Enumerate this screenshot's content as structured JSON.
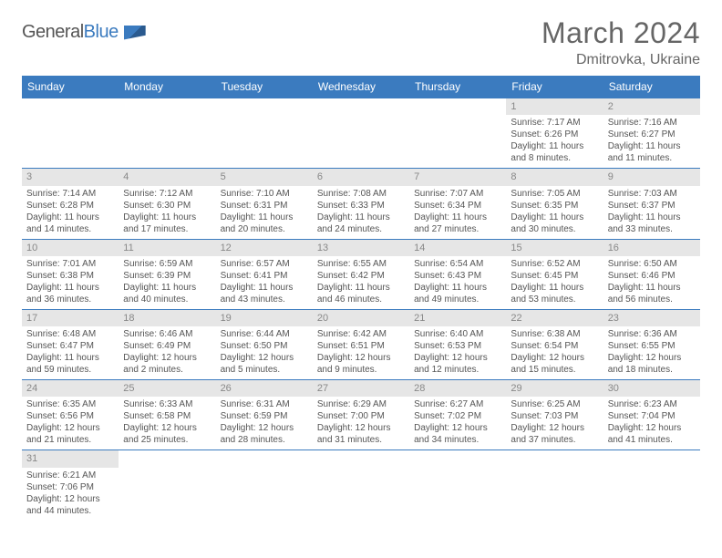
{
  "logo": {
    "text1": "General",
    "text2": "Blue"
  },
  "title": "March 2024",
  "location": "Dmitrovka, Ukraine",
  "colors": {
    "header_bg": "#3b7bbf",
    "header_fg": "#ffffff",
    "daynum_bg": "#e6e6e6",
    "daynum_fg": "#888888",
    "body_text": "#555555",
    "border": "#3b7bbf",
    "title_fg": "#666666"
  },
  "weekdays": [
    "Sunday",
    "Monday",
    "Tuesday",
    "Wednesday",
    "Thursday",
    "Friday",
    "Saturday"
  ],
  "weeks": [
    [
      null,
      null,
      null,
      null,
      null,
      {
        "n": "1",
        "sr": "Sunrise: 7:17 AM",
        "ss": "Sunset: 6:26 PM",
        "dl1": "Daylight: 11 hours",
        "dl2": "and 8 minutes."
      },
      {
        "n": "2",
        "sr": "Sunrise: 7:16 AM",
        "ss": "Sunset: 6:27 PM",
        "dl1": "Daylight: 11 hours",
        "dl2": "and 11 minutes."
      }
    ],
    [
      {
        "n": "3",
        "sr": "Sunrise: 7:14 AM",
        "ss": "Sunset: 6:28 PM",
        "dl1": "Daylight: 11 hours",
        "dl2": "and 14 minutes."
      },
      {
        "n": "4",
        "sr": "Sunrise: 7:12 AM",
        "ss": "Sunset: 6:30 PM",
        "dl1": "Daylight: 11 hours",
        "dl2": "and 17 minutes."
      },
      {
        "n": "5",
        "sr": "Sunrise: 7:10 AM",
        "ss": "Sunset: 6:31 PM",
        "dl1": "Daylight: 11 hours",
        "dl2": "and 20 minutes."
      },
      {
        "n": "6",
        "sr": "Sunrise: 7:08 AM",
        "ss": "Sunset: 6:33 PM",
        "dl1": "Daylight: 11 hours",
        "dl2": "and 24 minutes."
      },
      {
        "n": "7",
        "sr": "Sunrise: 7:07 AM",
        "ss": "Sunset: 6:34 PM",
        "dl1": "Daylight: 11 hours",
        "dl2": "and 27 minutes."
      },
      {
        "n": "8",
        "sr": "Sunrise: 7:05 AM",
        "ss": "Sunset: 6:35 PM",
        "dl1": "Daylight: 11 hours",
        "dl2": "and 30 minutes."
      },
      {
        "n": "9",
        "sr": "Sunrise: 7:03 AM",
        "ss": "Sunset: 6:37 PM",
        "dl1": "Daylight: 11 hours",
        "dl2": "and 33 minutes."
      }
    ],
    [
      {
        "n": "10",
        "sr": "Sunrise: 7:01 AM",
        "ss": "Sunset: 6:38 PM",
        "dl1": "Daylight: 11 hours",
        "dl2": "and 36 minutes."
      },
      {
        "n": "11",
        "sr": "Sunrise: 6:59 AM",
        "ss": "Sunset: 6:39 PM",
        "dl1": "Daylight: 11 hours",
        "dl2": "and 40 minutes."
      },
      {
        "n": "12",
        "sr": "Sunrise: 6:57 AM",
        "ss": "Sunset: 6:41 PM",
        "dl1": "Daylight: 11 hours",
        "dl2": "and 43 minutes."
      },
      {
        "n": "13",
        "sr": "Sunrise: 6:55 AM",
        "ss": "Sunset: 6:42 PM",
        "dl1": "Daylight: 11 hours",
        "dl2": "and 46 minutes."
      },
      {
        "n": "14",
        "sr": "Sunrise: 6:54 AM",
        "ss": "Sunset: 6:43 PM",
        "dl1": "Daylight: 11 hours",
        "dl2": "and 49 minutes."
      },
      {
        "n": "15",
        "sr": "Sunrise: 6:52 AM",
        "ss": "Sunset: 6:45 PM",
        "dl1": "Daylight: 11 hours",
        "dl2": "and 53 minutes."
      },
      {
        "n": "16",
        "sr": "Sunrise: 6:50 AM",
        "ss": "Sunset: 6:46 PM",
        "dl1": "Daylight: 11 hours",
        "dl2": "and 56 minutes."
      }
    ],
    [
      {
        "n": "17",
        "sr": "Sunrise: 6:48 AM",
        "ss": "Sunset: 6:47 PM",
        "dl1": "Daylight: 11 hours",
        "dl2": "and 59 minutes."
      },
      {
        "n": "18",
        "sr": "Sunrise: 6:46 AM",
        "ss": "Sunset: 6:49 PM",
        "dl1": "Daylight: 12 hours",
        "dl2": "and 2 minutes."
      },
      {
        "n": "19",
        "sr": "Sunrise: 6:44 AM",
        "ss": "Sunset: 6:50 PM",
        "dl1": "Daylight: 12 hours",
        "dl2": "and 5 minutes."
      },
      {
        "n": "20",
        "sr": "Sunrise: 6:42 AM",
        "ss": "Sunset: 6:51 PM",
        "dl1": "Daylight: 12 hours",
        "dl2": "and 9 minutes."
      },
      {
        "n": "21",
        "sr": "Sunrise: 6:40 AM",
        "ss": "Sunset: 6:53 PM",
        "dl1": "Daylight: 12 hours",
        "dl2": "and 12 minutes."
      },
      {
        "n": "22",
        "sr": "Sunrise: 6:38 AM",
        "ss": "Sunset: 6:54 PM",
        "dl1": "Daylight: 12 hours",
        "dl2": "and 15 minutes."
      },
      {
        "n": "23",
        "sr": "Sunrise: 6:36 AM",
        "ss": "Sunset: 6:55 PM",
        "dl1": "Daylight: 12 hours",
        "dl2": "and 18 minutes."
      }
    ],
    [
      {
        "n": "24",
        "sr": "Sunrise: 6:35 AM",
        "ss": "Sunset: 6:56 PM",
        "dl1": "Daylight: 12 hours",
        "dl2": "and 21 minutes."
      },
      {
        "n": "25",
        "sr": "Sunrise: 6:33 AM",
        "ss": "Sunset: 6:58 PM",
        "dl1": "Daylight: 12 hours",
        "dl2": "and 25 minutes."
      },
      {
        "n": "26",
        "sr": "Sunrise: 6:31 AM",
        "ss": "Sunset: 6:59 PM",
        "dl1": "Daylight: 12 hours",
        "dl2": "and 28 minutes."
      },
      {
        "n": "27",
        "sr": "Sunrise: 6:29 AM",
        "ss": "Sunset: 7:00 PM",
        "dl1": "Daylight: 12 hours",
        "dl2": "and 31 minutes."
      },
      {
        "n": "28",
        "sr": "Sunrise: 6:27 AM",
        "ss": "Sunset: 7:02 PM",
        "dl1": "Daylight: 12 hours",
        "dl2": "and 34 minutes."
      },
      {
        "n": "29",
        "sr": "Sunrise: 6:25 AM",
        "ss": "Sunset: 7:03 PM",
        "dl1": "Daylight: 12 hours",
        "dl2": "and 37 minutes."
      },
      {
        "n": "30",
        "sr": "Sunrise: 6:23 AM",
        "ss": "Sunset: 7:04 PM",
        "dl1": "Daylight: 12 hours",
        "dl2": "and 41 minutes."
      }
    ],
    [
      {
        "n": "31",
        "sr": "Sunrise: 6:21 AM",
        "ss": "Sunset: 7:06 PM",
        "dl1": "Daylight: 12 hours",
        "dl2": "and 44 minutes."
      },
      null,
      null,
      null,
      null,
      null,
      null
    ]
  ]
}
